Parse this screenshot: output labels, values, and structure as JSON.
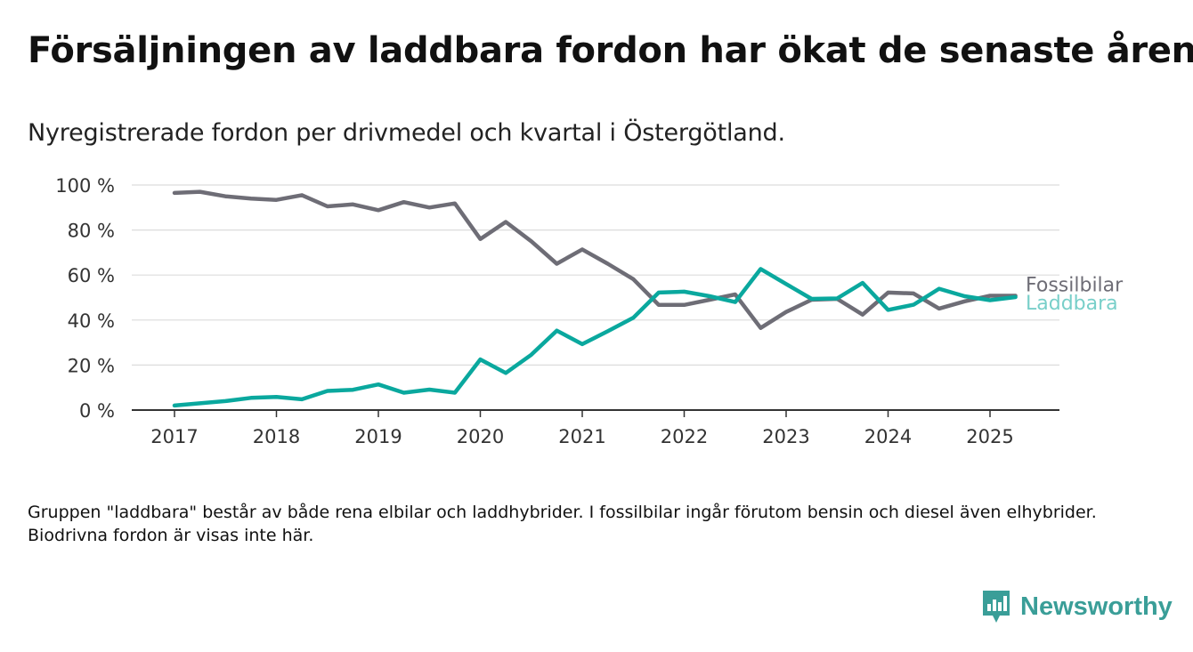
{
  "title": "Försäljningen av laddbara fordon har ökat de senaste åren",
  "subtitle": "Nyregistrerade fordon per drivmedel och kvartal i Östergötland.",
  "footnote": "Gruppen \"laddbara\" består av både rena elbilar och laddhybrider. I fossilbilar ingår förutom bensin och diesel även elhybrider. Biodrivna fordon är visas inte här.",
  "brand": {
    "name": "Newsworthy",
    "icon": "newsworthy-logo-icon",
    "color": "#3a9e98"
  },
  "chart_data": {
    "type": "line",
    "xlabel": "",
    "ylabel": "",
    "x": [
      "2017 Q1",
      "2017 Q2",
      "2017 Q3",
      "2017 Q4",
      "2018 Q1",
      "2018 Q2",
      "2018 Q3",
      "2018 Q4",
      "2019 Q1",
      "2019 Q2",
      "2019 Q3",
      "2019 Q4",
      "2020 Q1",
      "2020 Q2",
      "2020 Q3",
      "2020 Q4",
      "2021 Q1",
      "2021 Q2",
      "2021 Q3",
      "2021 Q4",
      "2022 Q1",
      "2022 Q2",
      "2022 Q3",
      "2022 Q4",
      "2023 Q1",
      "2023 Q2",
      "2023 Q3",
      "2023 Q4",
      "2024 Q1",
      "2024 Q2",
      "2024 Q3",
      "2024 Q4",
      "2025 Q1",
      "2025 Q2"
    ],
    "x_tick_labels": [
      "2017",
      "2018",
      "2019",
      "2020",
      "2021",
      "2022",
      "2023",
      "2024",
      "2025"
    ],
    "y_tick_labels": [
      "0 %",
      "20 %",
      "40 %",
      "60 %",
      "80 %",
      "100 %"
    ],
    "ylim": [
      0,
      100
    ],
    "grid": true,
    "series": [
      {
        "name": "Fossilbilar",
        "color": "#6e6d76",
        "values": [
          96.5,
          97,
          95,
          94,
          93.4,
          95.5,
          90.5,
          91.4,
          88.8,
          92.4,
          90,
          91.8,
          76,
          83.6,
          75,
          65,
          71.4,
          65,
          58.2,
          46.7,
          46.7,
          49,
          51.4,
          36.5,
          43.6,
          49,
          49.4,
          42.4,
          52.2,
          51.8,
          45.1,
          48.3,
          50.8,
          50.8
        ]
      },
      {
        "name": "Laddbara",
        "color": "#0aa89e",
        "values": [
          2,
          3,
          4,
          5.4,
          5.8,
          4.8,
          8.5,
          9,
          11.4,
          7.7,
          9.1,
          7.7,
          22.5,
          16.5,
          24.6,
          35.3,
          29.3,
          35,
          41,
          52.2,
          52.6,
          50.6,
          48,
          62.7,
          56,
          49.4,
          49.6,
          56.5,
          44.5,
          46.8,
          53.9,
          50.6,
          48.8,
          50.2
        ]
      }
    ]
  }
}
